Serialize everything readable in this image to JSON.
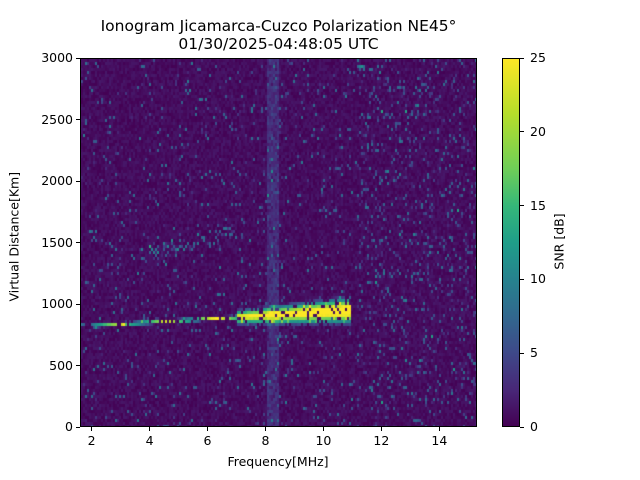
{
  "chart_data": {
    "type": "heatmap",
    "title": "Ionogram Jicamarca-Cuzco Polarization NE45°",
    "subtitle": "01/30/2025-04:48:05 UTC",
    "xlabel": "Frequency[MHz]",
    "ylabel": "Virtual Distance[Km]",
    "xlim": [
      1.6,
      15.3
    ],
    "ylim": [
      0,
      3000
    ],
    "xticks": [
      2,
      4,
      6,
      8,
      10,
      12,
      14
    ],
    "yticks": [
      0,
      500,
      1000,
      1500,
      2000,
      2500,
      3000
    ],
    "colorbar": {
      "label": "SNR [dB]",
      "range": [
        0,
        25
      ],
      "ticks": [
        0,
        5,
        10,
        15,
        20,
        25
      ],
      "colormap": "viridis"
    },
    "grid": false,
    "features": [
      {
        "name": "F-layer trace (1 hop)",
        "freq_mhz": [
          1.9,
          10.9
        ],
        "range_km": [
          830,
          1050
        ],
        "peak_snr_db": 25
      },
      {
        "name": "2-hop echo",
        "freq_mhz": [
          3.9,
          7.0
        ],
        "range_km": [
          1400,
          1650
        ],
        "peak_snr_db": 12
      },
      {
        "name": "interference band",
        "freq_mhz": [
          8.0,
          8.4
        ],
        "range_km": [
          0,
          3000
        ],
        "peak_snr_db": 5
      }
    ]
  },
  "labels": {
    "title": "Ionogram Jicamarca-Cuzco Polarization NE45°",
    "subtitle": "01/30/2025-04:48:05 UTC",
    "xlabel": "Frequency[MHz]",
    "ylabel": "Virtual Distance[Km]",
    "cbar_label": "SNR [dB]",
    "xticks": [
      "2",
      "4",
      "6",
      "8",
      "10",
      "12",
      "14"
    ],
    "yticks": [
      "0",
      "500",
      "1000",
      "1500",
      "2000",
      "2500",
      "3000"
    ],
    "cticks": [
      "0",
      "5",
      "10",
      "15",
      "20",
      "25"
    ]
  }
}
